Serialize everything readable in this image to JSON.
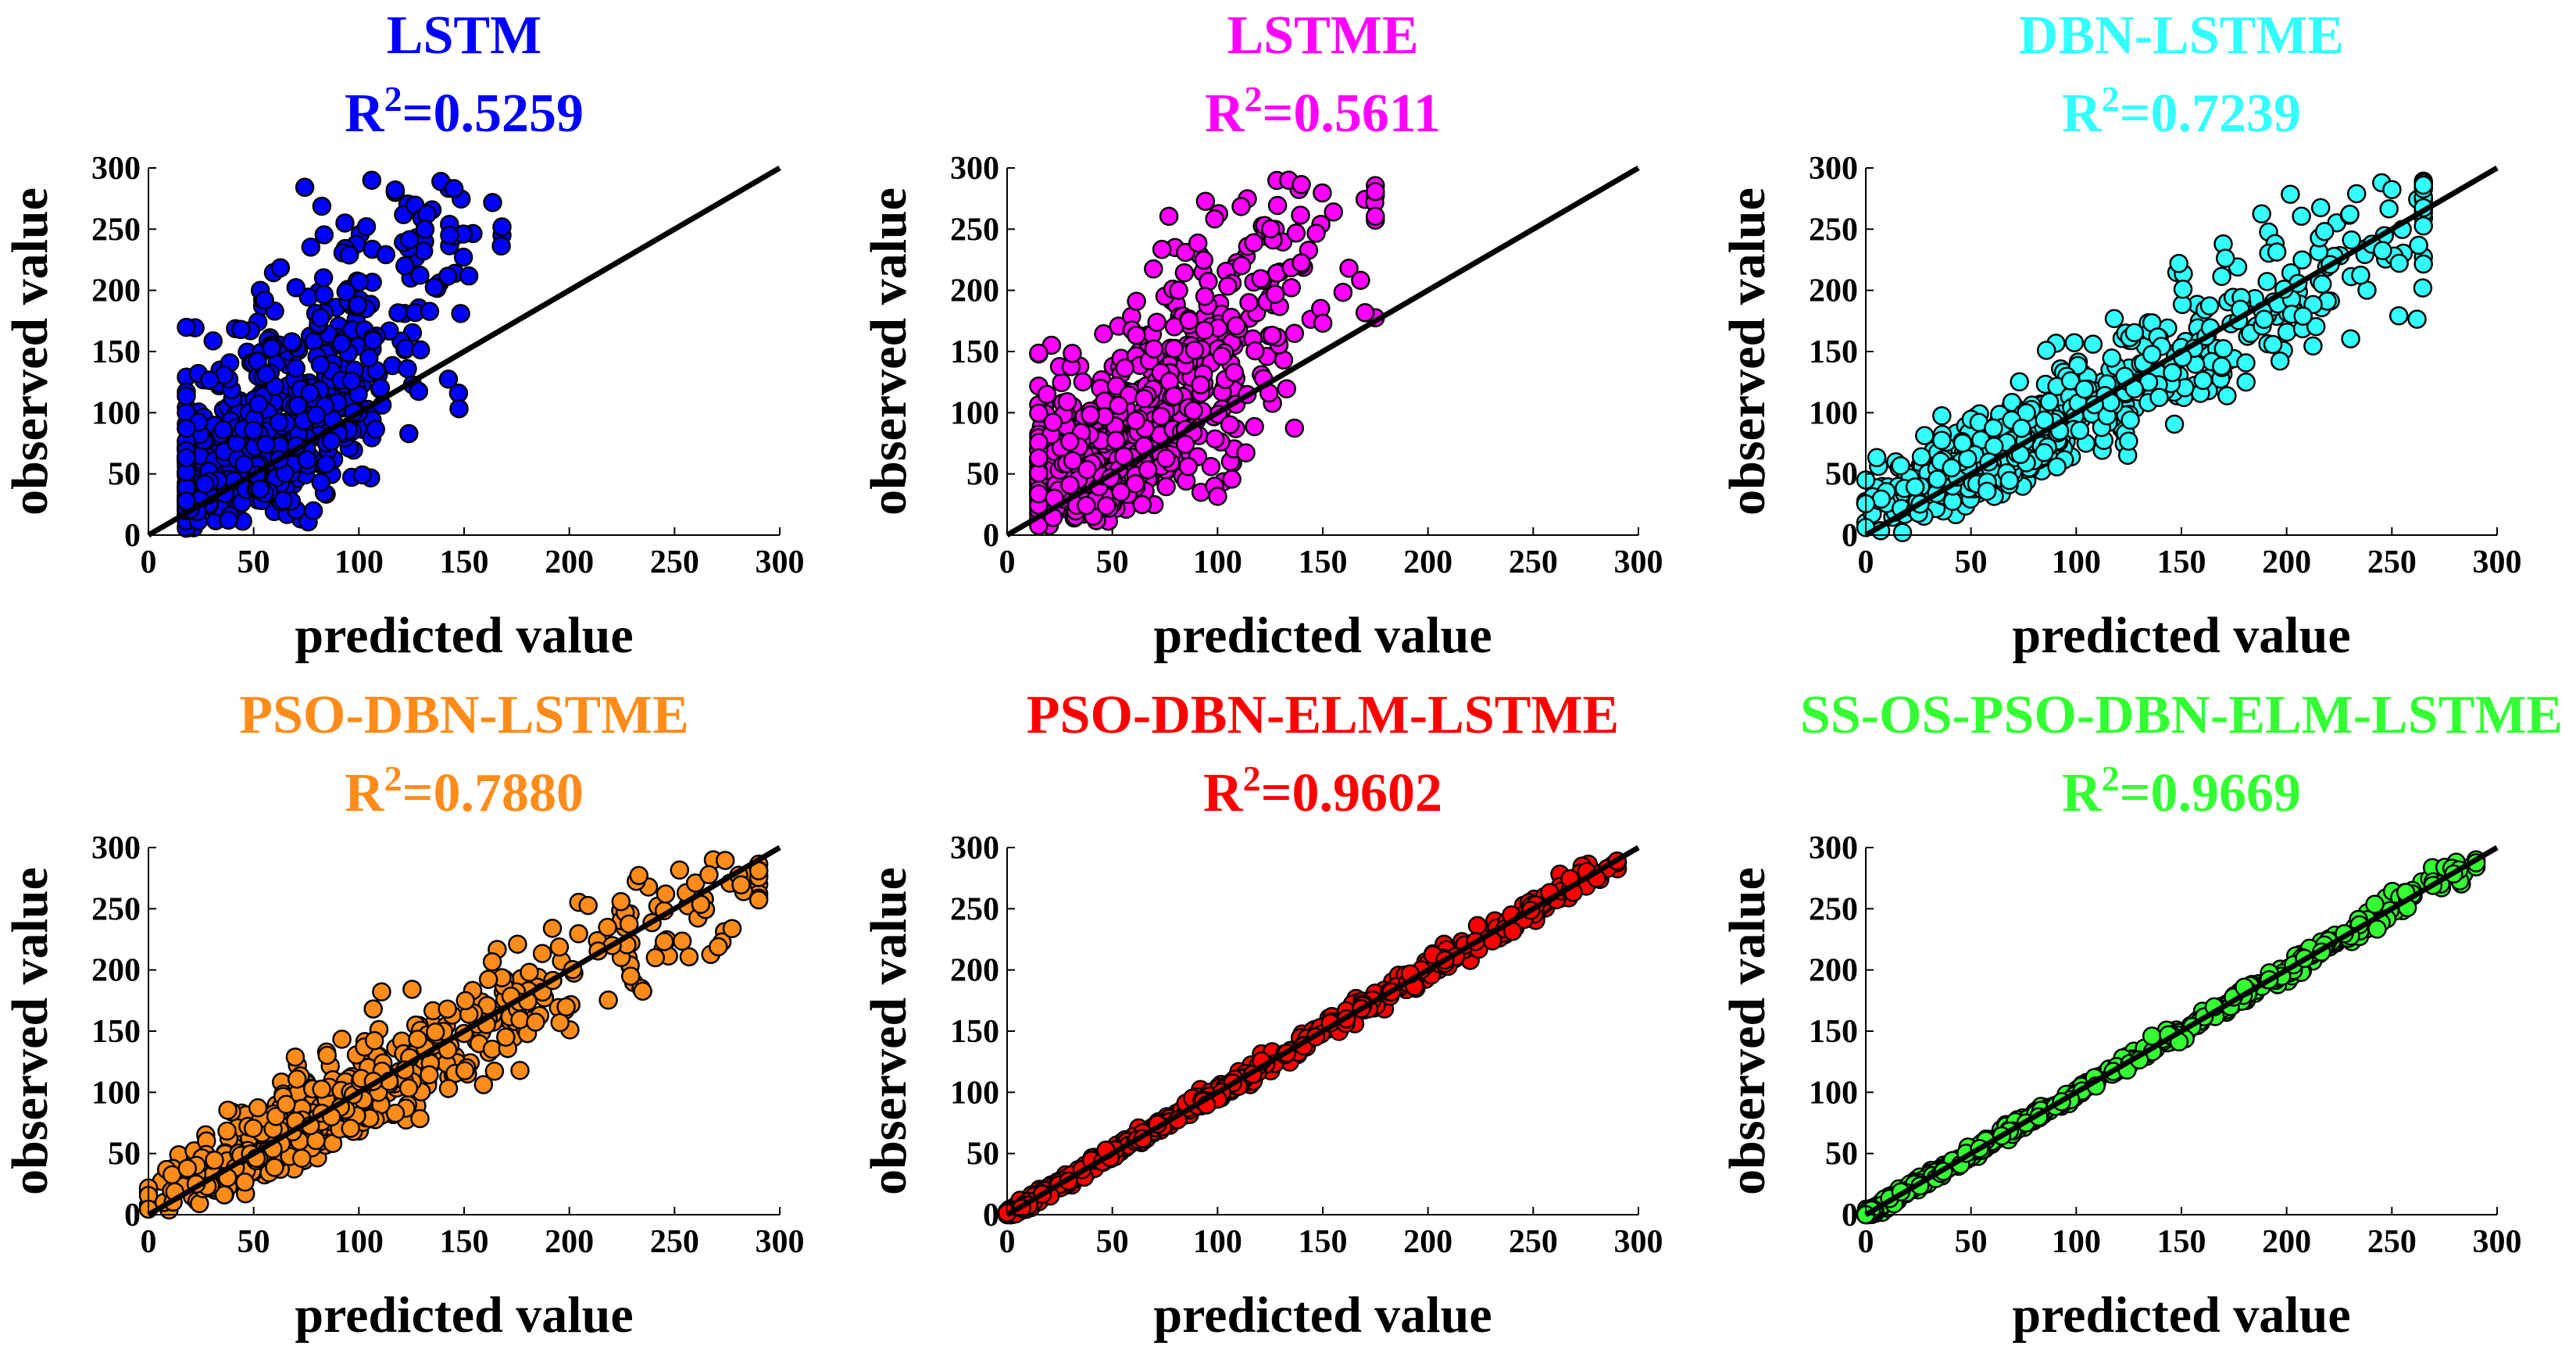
{
  "chart_data": [
    {
      "type": "scatter",
      "title": "LSTM",
      "r2_label": "R",
      "r2_exp": "2",
      "r2_value": "=0.5259",
      "color": "#0000ff",
      "xlabel": "predicted value",
      "ylabel": "observed value",
      "xlim": [
        0,
        300
      ],
      "ylim": [
        0,
        300
      ],
      "xticks": [
        "0",
        "50",
        "100",
        "150",
        "200",
        "250",
        "300"
      ],
      "yticks": [
        "0",
        "50",
        "100",
        "150",
        "200",
        "250",
        "300"
      ],
      "reference_line": [
        [
          0,
          0
        ],
        [
          300,
          300
        ]
      ],
      "fit_quality": 0.5259,
      "pred_range": [
        18,
        168
      ],
      "obs_range": [
        0,
        290
      ]
    },
    {
      "type": "scatter",
      "title": "LSTME",
      "r2_label": "R",
      "r2_exp": "2",
      "r2_value": "=0.5611",
      "color": "#ff00ff",
      "xlabel": "predicted value",
      "ylabel": "observed value",
      "xlim": [
        0,
        300
      ],
      "ylim": [
        0,
        300
      ],
      "xticks": [
        "0",
        "50",
        "100",
        "150",
        "200",
        "250",
        "300"
      ],
      "yticks": [
        "0",
        "50",
        "100",
        "150",
        "200",
        "250",
        "300"
      ],
      "reference_line": [
        [
          0,
          0
        ],
        [
          300,
          300
        ]
      ],
      "fit_quality": 0.5611,
      "pred_range": [
        15,
        175
      ],
      "obs_range": [
        0,
        290
      ]
    },
    {
      "type": "scatter",
      "title": "DBN-LSTME",
      "r2_label": "R",
      "r2_exp": "2",
      "r2_value": "=0.7239",
      "color": "#33ffff",
      "xlabel": "predicted value",
      "ylabel": "observed value",
      "xlim": [
        0,
        300
      ],
      "ylim": [
        0,
        300
      ],
      "xticks": [
        "0",
        "50",
        "100",
        "150",
        "200",
        "250",
        "300"
      ],
      "yticks": [
        "0",
        "50",
        "100",
        "150",
        "200",
        "250",
        "300"
      ],
      "reference_line": [
        [
          0,
          0
        ],
        [
          300,
          300
        ]
      ],
      "fit_quality": 0.7239,
      "pred_range": [
        0,
        265
      ],
      "obs_range": [
        0,
        290
      ]
    },
    {
      "type": "scatter",
      "title": "PSO-DBN-LSTME",
      "r2_label": "R",
      "r2_exp": "2",
      "r2_value": "=0.7880",
      "color": "#ff8c1a",
      "xlabel": "predicted value",
      "ylabel": "observed value",
      "xlim": [
        0,
        300
      ],
      "ylim": [
        0,
        300
      ],
      "xticks": [
        "0",
        "50",
        "100",
        "150",
        "200",
        "250",
        "300"
      ],
      "yticks": [
        "0",
        "50",
        "100",
        "150",
        "200",
        "250",
        "300"
      ],
      "reference_line": [
        [
          0,
          0
        ],
        [
          300,
          300
        ]
      ],
      "fit_quality": 0.788,
      "pred_range": [
        0,
        290
      ],
      "obs_range": [
        0,
        290
      ]
    },
    {
      "type": "scatter",
      "title": "PSO-DBN-ELM-LSTME",
      "r2_label": "R",
      "r2_exp": "2",
      "r2_value": "=0.9602",
      "color": "#ff0000",
      "xlabel": "predicted value",
      "ylabel": "observed value",
      "xlim": [
        0,
        300
      ],
      "ylim": [
        0,
        300
      ],
      "xticks": [
        "0",
        "50",
        "100",
        "150",
        "200",
        "250",
        "300"
      ],
      "yticks": [
        "0",
        "50",
        "100",
        "150",
        "200",
        "250",
        "300"
      ],
      "reference_line": [
        [
          0,
          0
        ],
        [
          300,
          300
        ]
      ],
      "fit_quality": 0.9602,
      "pred_range": [
        0,
        290
      ],
      "obs_range": [
        0,
        290
      ]
    },
    {
      "type": "scatter",
      "title": "SS-OS-PSO-DBN-ELM-LSTME",
      "r2_label": "R",
      "r2_exp": "2",
      "r2_value": "=0.9669",
      "color": "#33ff33",
      "xlabel": "predicted value",
      "ylabel": "observed value",
      "xlim": [
        0,
        300
      ],
      "ylim": [
        0,
        300
      ],
      "xticks": [
        "0",
        "50",
        "100",
        "150",
        "200",
        "250",
        "300"
      ],
      "yticks": [
        "0",
        "50",
        "100",
        "150",
        "200",
        "250",
        "300"
      ],
      "reference_line": [
        [
          0,
          0
        ],
        [
          300,
          300
        ]
      ],
      "fit_quality": 0.9669,
      "pred_range": [
        0,
        290
      ],
      "obs_range": [
        0,
        290
      ]
    }
  ]
}
